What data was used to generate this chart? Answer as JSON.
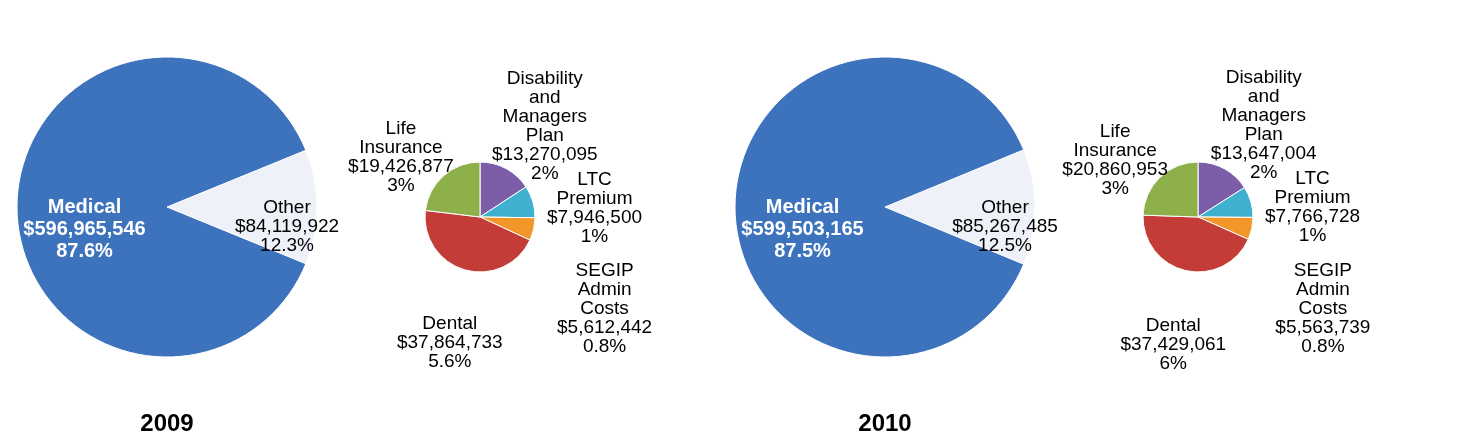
{
  "chart_data": [
    {
      "type": "pie",
      "title": "2009",
      "categories": [
        "Other",
        "Medical"
      ],
      "values": [
        84119922,
        596965546
      ],
      "value_labels": [
        "$84,119,922 12.3%",
        "$596,965,546 87.6%"
      ],
      "colors": [
        "#eef2f8",
        "#3d72bd"
      ]
    },
    {
      "type": "pie",
      "categories": [
        "Disability and Managers Plan",
        "LTC Premium",
        "SEGIP Admin Costs",
        "Dental",
        "Life Insurance"
      ],
      "values": [
        13270095,
        7946500,
        5612442,
        37864733,
        19426877
      ],
      "value_labels": [
        "$13,270,095 2%",
        "$7,946,500 1%",
        "$5,612,442 0.8%",
        "$37,864,733 5.6%",
        "$19,426,877 3%"
      ],
      "colors": [
        "#7b5ea7",
        "#3fb0cf",
        "#f2962a",
        "#c43c37",
        "#8db04a"
      ]
    },
    {
      "type": "pie",
      "title": "2010",
      "categories": [
        "Other",
        "Medical"
      ],
      "values": [
        85267485,
        599503165
      ],
      "value_labels": [
        "$85,267,485 12.5%",
        "$599,503,165 87.5%"
      ],
      "colors": [
        "#eef2f8",
        "#3d72bd"
      ]
    },
    {
      "type": "pie",
      "categories": [
        "Disability and Managers Plan",
        "LTC Premium",
        "SEGIP Admin Costs",
        "Dental",
        "Life Insurance"
      ],
      "values": [
        13647004,
        7766728,
        5563739,
        37429061,
        20860953
      ],
      "value_labels": [
        "$13,647,004 2%",
        "$7,766,728 1%",
        "$5,563,739 0.8%",
        "$37,429,061 6%",
        "$20,860,953 3%"
      ],
      "colors": [
        "#7b5ea7",
        "#3fb0cf",
        "#f2962a",
        "#c43c37",
        "#8db04a"
      ]
    }
  ]
}
